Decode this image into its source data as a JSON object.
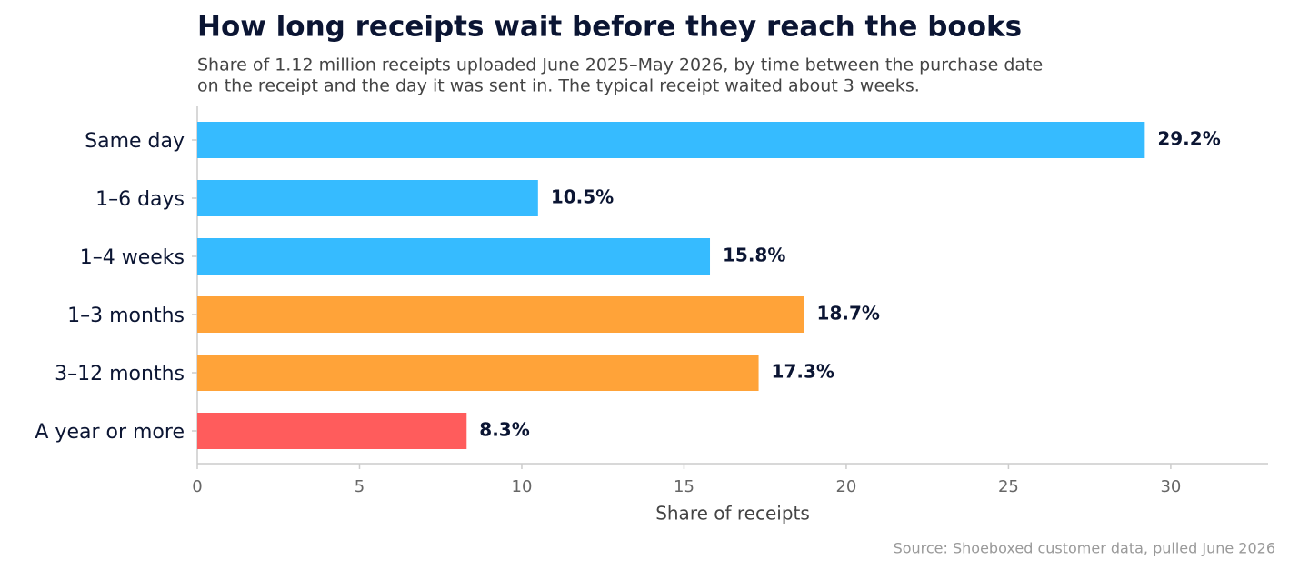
{
  "chart_data": {
    "type": "bar",
    "orientation": "horizontal",
    "title": "How long receipts wait before they reach the books",
    "subtitle": [
      "Share of 1.12 million receipts uploaded June 2025–May 2026, by time between the purchase date",
      "on the receipt and the day it was sent in. The typical receipt waited about 3 weeks."
    ],
    "categories": [
      "Same day",
      "1–6 days",
      "1–4 weeks",
      "1–3 months",
      "3–12 months",
      "A year or more"
    ],
    "values": [
      29.2,
      10.5,
      15.8,
      18.7,
      17.3,
      8.3
    ],
    "value_labels": [
      "29.2%",
      "10.5%",
      "15.8%",
      "18.7%",
      "17.3%",
      "8.3%"
    ],
    "colors": [
      "#36bbff",
      "#36bbff",
      "#36bbff",
      "#ffa339",
      "#ffa339",
      "#ff5c5c"
    ],
    "xlabel": "Share of receipts",
    "xlim": [
      0,
      33
    ],
    "xticks": [
      0,
      5,
      10,
      15,
      20,
      25,
      30
    ],
    "source": "Source: Shoeboxed customer data, pulled June 2026"
  }
}
